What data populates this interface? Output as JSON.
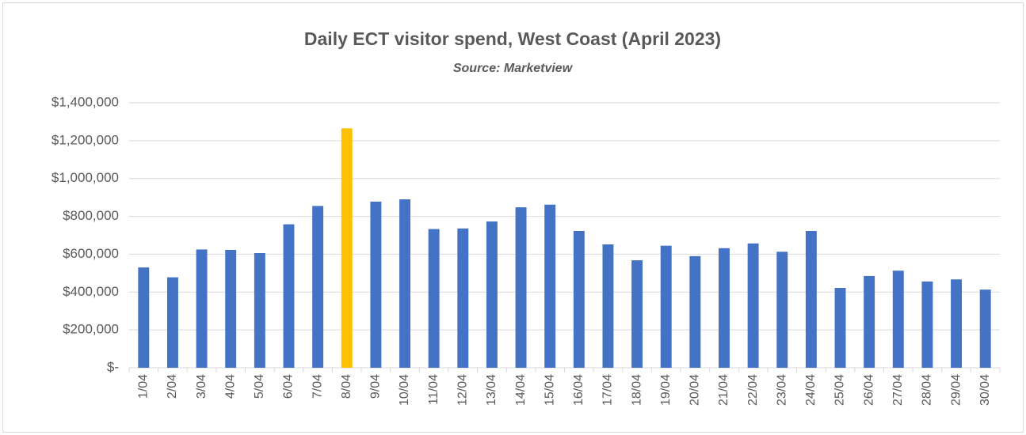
{
  "chart_data": {
    "type": "bar",
    "title": "Daily ECT visitor spend, West Coast (April 2023)",
    "subtitle": "Source: Marketview",
    "categories": [
      "1/04",
      "2/04",
      "3/04",
      "4/04",
      "5/04",
      "6/04",
      "7/04",
      "8/04",
      "9/04",
      "10/04",
      "11/04",
      "12/04",
      "13/04",
      "14/04",
      "15/04",
      "16/04",
      "17/04",
      "18/04",
      "19/04",
      "20/04",
      "21/04",
      "22/04",
      "23/04",
      "24/04",
      "25/04",
      "26/04",
      "27/04",
      "28/04",
      "29/04",
      "30/04"
    ],
    "values": [
      530000,
      478000,
      625000,
      623000,
      606000,
      758000,
      855000,
      1265000,
      878000,
      890000,
      733000,
      736000,
      773000,
      848000,
      862000,
      723000,
      652000,
      568000,
      645000,
      590000,
      632000,
      657000,
      613000,
      723000,
      422000,
      485000,
      513000,
      456000,
      467000,
      413000
    ],
    "colors": [
      "#4472c4",
      "#4472c4",
      "#4472c4",
      "#4472c4",
      "#4472c4",
      "#4472c4",
      "#4472c4",
      "#ffc000",
      "#4472c4",
      "#4472c4",
      "#4472c4",
      "#4472c4",
      "#4472c4",
      "#4472c4",
      "#4472c4",
      "#4472c4",
      "#4472c4",
      "#4472c4",
      "#4472c4",
      "#4472c4",
      "#4472c4",
      "#4472c4",
      "#4472c4",
      "#4472c4",
      "#4472c4",
      "#4472c4",
      "#4472c4",
      "#4472c4",
      "#4472c4",
      "#4472c4"
    ],
    "ylim": [
      0,
      1400000
    ],
    "yticks": [
      {
        "value": 0,
        "label": "$-"
      },
      {
        "value": 200000,
        "label": "$200,000"
      },
      {
        "value": 400000,
        "label": "$400,000"
      },
      {
        "value": 600000,
        "label": "$600,000"
      },
      {
        "value": 800000,
        "label": "$800,000"
      },
      {
        "value": 1000000,
        "label": "$1,000,000"
      },
      {
        "value": 1200000,
        "label": "$1,200,000"
      },
      {
        "value": 1400000,
        "label": "$1,400,000"
      }
    ],
    "grid": true
  }
}
